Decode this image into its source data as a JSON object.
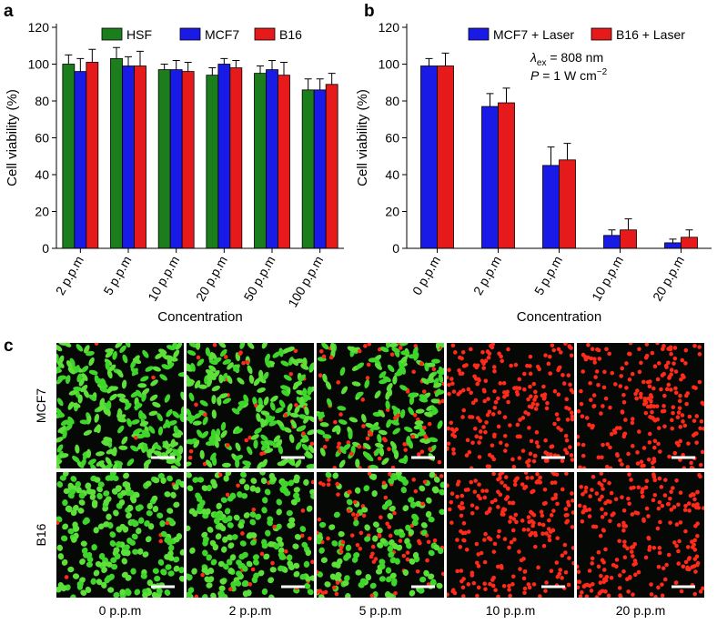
{
  "chart_data": [
    {
      "type": "bar",
      "label": "a",
      "xlabel": "Concentration",
      "ylabel": "Cell viability (%)",
      "categories": [
        "2 p.p.m",
        "5 p.p.m",
        "10 p.p.m",
        "20 p.p.m",
        "50 p.p.m",
        "100 p.p.m"
      ],
      "series": [
        {
          "name": "HSF",
          "color": "#1b7d1b",
          "values": [
            100,
            103,
            97,
            94,
            95,
            86
          ],
          "errors": [
            5,
            6,
            3,
            4,
            4,
            6
          ]
        },
        {
          "name": "MCF7",
          "color": "#1a1ae6",
          "values": [
            96,
            99,
            97,
            100,
            97,
            86
          ],
          "errors": [
            7,
            5,
            5,
            3,
            5,
            6
          ]
        },
        {
          "name": "B16",
          "color": "#e61a1a",
          "values": [
            101,
            99,
            96,
            98,
            94,
            89
          ],
          "errors": [
            7,
            8,
            5,
            4,
            7,
            6
          ]
        }
      ],
      "ylim": [
        0,
        120
      ],
      "yticks": [
        0,
        20,
        40,
        60,
        80,
        100,
        120
      ],
      "legend": "top"
    },
    {
      "type": "bar",
      "label": "b",
      "xlabel": "Concentration",
      "ylabel": "Cell viability (%)",
      "categories": [
        "0 p.p.m",
        "2 p.p.m",
        "5 p.p.m",
        "10 p.p.m",
        "20 p.p.m"
      ],
      "series": [
        {
          "name": "MCF7 + Laser",
          "color": "#1a1ae6",
          "values": [
            99,
            77,
            45,
            7,
            3
          ],
          "errors": [
            4,
            7,
            10,
            3,
            2
          ]
        },
        {
          "name": "B16 + Laser",
          "color": "#e61a1a",
          "values": [
            99,
            79,
            48,
            10,
            6
          ],
          "errors": [
            7,
            8,
            9,
            6,
            4
          ]
        }
      ],
      "annotations": [
        [
          "λ",
          "ex",
          " = 808 nm"
        ],
        [
          "P",
          " = 1 W cm",
          "−2"
        ]
      ],
      "ylim": [
        0,
        120
      ],
      "yticks": [
        0,
        20,
        40,
        60,
        80,
        100,
        120
      ],
      "legend": "top"
    }
  ],
  "image_grid": {
    "label": "c",
    "rows": [
      "MCF7",
      "B16"
    ],
    "columns": [
      "0 p.p.m",
      "2 p.p.m",
      "5 p.p.m",
      "10 p.p.m",
      "20 p.p.m"
    ]
  }
}
